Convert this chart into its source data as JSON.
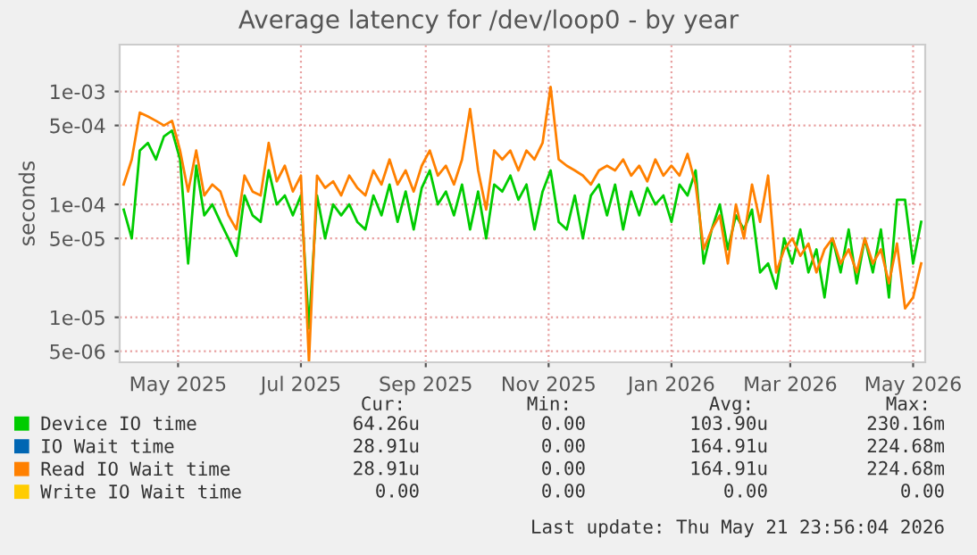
{
  "chart_data": {
    "type": "line",
    "title": "Average latency for /dev/loop0 - by year",
    "ylabel": "seconds",
    "log": "y",
    "grid": true,
    "legend": "bottom",
    "marker": "none",
    "line_style": "solid",
    "xlim": [
      "2025-04-02",
      "2026-05-07"
    ],
    "ylim": [
      4e-06,
      0.0026
    ],
    "xticks": [
      {
        "value": "2025-05-01",
        "label": "May 2025"
      },
      {
        "value": "2025-07-01",
        "label": "Jul 2025"
      },
      {
        "value": "2025-09-01",
        "label": "Sep 2025"
      },
      {
        "value": "2025-11-01",
        "label": "Nov 2025"
      },
      {
        "value": "2026-01-01",
        "label": "Jan 2026"
      },
      {
        "value": "2026-03-01",
        "label": "Mar 2026"
      },
      {
        "value": "2026-05-01",
        "label": "May 2026"
      }
    ],
    "yticks": [
      {
        "value": 0.001,
        "label": "1e-03"
      },
      {
        "value": 0.0005,
        "label": "5e-04"
      },
      {
        "value": 0.0001,
        "label": "1e-04"
      },
      {
        "value": 5e-05,
        "label": "5e-05"
      },
      {
        "value": 1e-05,
        "label": "1e-05"
      },
      {
        "value": 5e-06,
        "label": "5e-06"
      }
    ],
    "x": [
      "2025-04-04",
      "2025-04-08",
      "2025-04-12",
      "2025-04-16",
      "2025-04-20",
      "2025-04-24",
      "2025-04-28",
      "2025-05-02",
      "2025-05-06",
      "2025-05-10",
      "2025-05-14",
      "2025-05-18",
      "2025-05-22",
      "2025-05-26",
      "2025-05-30",
      "2025-06-03",
      "2025-06-07",
      "2025-06-11",
      "2025-06-15",
      "2025-06-19",
      "2025-06-23",
      "2025-06-27",
      "2025-07-01",
      "2025-07-05",
      "2025-07-09",
      "2025-07-13",
      "2025-07-17",
      "2025-07-21",
      "2025-07-25",
      "2025-07-29",
      "2025-08-02",
      "2025-08-06",
      "2025-08-10",
      "2025-08-14",
      "2025-08-18",
      "2025-08-22",
      "2025-08-26",
      "2025-08-30",
      "2025-09-03",
      "2025-09-07",
      "2025-09-11",
      "2025-09-15",
      "2025-09-19",
      "2025-09-23",
      "2025-09-27",
      "2025-10-01",
      "2025-10-05",
      "2025-10-09",
      "2025-10-13",
      "2025-10-17",
      "2025-10-21",
      "2025-10-25",
      "2025-10-29",
      "2025-11-02",
      "2025-11-06",
      "2025-11-10",
      "2025-11-14",
      "2025-11-18",
      "2025-11-22",
      "2025-11-26",
      "2025-11-30",
      "2025-12-04",
      "2025-12-08",
      "2025-12-12",
      "2025-12-16",
      "2025-12-20",
      "2025-12-24",
      "2025-12-28",
      "2026-01-01",
      "2026-01-05",
      "2026-01-09",
      "2026-01-13",
      "2026-01-17",
      "2026-01-21",
      "2026-01-25",
      "2026-01-29",
      "2026-02-02",
      "2026-02-06",
      "2026-02-10",
      "2026-02-14",
      "2026-02-18",
      "2026-02-22",
      "2026-02-26",
      "2026-03-02",
      "2026-03-06",
      "2026-03-10",
      "2026-03-14",
      "2026-03-18",
      "2026-03-22",
      "2026-03-26",
      "2026-03-30",
      "2026-04-03",
      "2026-04-07",
      "2026-04-11",
      "2026-04-15",
      "2026-04-19",
      "2026-04-23",
      "2026-04-27",
      "2026-05-01",
      "2026-05-05"
    ],
    "series": [
      {
        "name": "Device IO time",
        "color": "#00cc00",
        "values": [
          9e-05,
          5e-05,
          0.0003,
          0.00035,
          0.00025,
          0.0004,
          0.00045,
          0.00025,
          3e-05,
          0.00022,
          8e-05,
          0.0001,
          7e-05,
          5e-05,
          3.5e-05,
          0.00012,
          8e-05,
          7e-05,
          0.0002,
          0.0001,
          0.00012,
          8e-05,
          0.00012,
          8e-06,
          0.00012,
          5e-05,
          0.0001,
          8e-05,
          0.0001,
          7e-05,
          6e-05,
          0.00012,
          8e-05,
          0.00015,
          7e-05,
          0.00013,
          6e-05,
          0.00014,
          0.0002,
          0.0001,
          0.00013,
          8e-05,
          0.00015,
          6e-05,
          0.00013,
          5e-05,
          0.00015,
          0.00013,
          0.00018,
          0.00011,
          0.00015,
          6e-05,
          0.00013,
          0.0002,
          7e-05,
          6e-05,
          0.00012,
          5e-05,
          0.00012,
          0.00015,
          8e-05,
          0.00015,
          6e-05,
          0.00013,
          8e-05,
          0.00014,
          0.0001,
          0.00012,
          7e-05,
          0.00015,
          0.00012,
          0.0002,
          3e-05,
          6e-05,
          0.0001,
          4e-05,
          8e-05,
          6e-05,
          9e-05,
          2.5e-05,
          3e-05,
          1.8e-05,
          5e-05,
          3e-05,
          6e-05,
          2.5e-05,
          4e-05,
          1.5e-05,
          5e-05,
          2.5e-05,
          6e-05,
          2e-05,
          5e-05,
          2.5e-05,
          6e-05,
          1.5e-05,
          0.00011,
          0.00011,
          3e-05,
          7e-05
        ]
      },
      {
        "name": "IO Wait time",
        "color": "#0066b3",
        "values": [
          null,
          null,
          null,
          null,
          null,
          null,
          null,
          null,
          null,
          null,
          null,
          null,
          null,
          null,
          null,
          null,
          null,
          null,
          null,
          null,
          null,
          null,
          null,
          null,
          null,
          null,
          null,
          null,
          null,
          null,
          null,
          null,
          null,
          null,
          null,
          null,
          null,
          null,
          null,
          null,
          null,
          null,
          null,
          null,
          null,
          null,
          null,
          null,
          null,
          null,
          null,
          null,
          null,
          null,
          null,
          null,
          null,
          null,
          null,
          null,
          null,
          null,
          null,
          null,
          null,
          null,
          null,
          null,
          null,
          null,
          null,
          null,
          null,
          null,
          null,
          null,
          null,
          null,
          null,
          null,
          null,
          null,
          null,
          null,
          null,
          null,
          null,
          null,
          null,
          null,
          null,
          null,
          null,
          null,
          null,
          null,
          null,
          null,
          null,
          null
        ]
      },
      {
        "name": "Read IO Wait time",
        "color": "#ff8000",
        "values": [
          0.00015,
          0.00025,
          0.00065,
          0.0006,
          0.00055,
          0.0005,
          0.00055,
          0.0003,
          0.00013,
          0.0003,
          0.00012,
          0.00015,
          0.00013,
          8e-05,
          6e-05,
          0.00018,
          0.00013,
          0.00012,
          0.00035,
          0.00016,
          0.00022,
          0.00013,
          0.00018,
          4e-06,
          0.00018,
          0.00014,
          0.00016,
          0.00012,
          0.00018,
          0.00014,
          0.00012,
          0.0002,
          0.00015,
          0.00025,
          0.00015,
          0.0002,
          0.00013,
          0.00022,
          0.0003,
          0.00018,
          0.00022,
          0.00015,
          0.00025,
          0.0007,
          0.0002,
          9e-05,
          0.0003,
          0.00025,
          0.0003,
          0.0002,
          0.0003,
          0.00025,
          0.00035,
          0.0011,
          0.00025,
          0.00022,
          0.0002,
          0.00018,
          0.00015,
          0.0002,
          0.00022,
          0.0002,
          0.00025,
          0.00018,
          0.00022,
          0.00016,
          0.00025,
          0.00018,
          0.00022,
          0.00018,
          0.00028,
          0.00015,
          4e-05,
          6e-05,
          8e-05,
          3e-05,
          0.0001,
          5e-05,
          0.00015,
          7e-05,
          0.00018,
          2.5e-05,
          4e-05,
          5e-05,
          3.5e-05,
          4.5e-05,
          2.5e-05,
          4e-05,
          5e-05,
          3e-05,
          4e-05,
          2.5e-05,
          5e-05,
          3e-05,
          4e-05,
          2e-05,
          4.5e-05,
          1.2e-05,
          1.5e-05,
          3e-05
        ]
      },
      {
        "name": "Write IO Wait time",
        "color": "#ffcc00",
        "values": [
          null,
          null,
          null,
          null,
          null,
          null,
          null,
          null,
          null,
          null,
          null,
          null,
          null,
          null,
          null,
          null,
          null,
          null,
          null,
          null,
          null,
          null,
          null,
          null,
          null,
          null,
          null,
          null,
          null,
          null,
          null,
          null,
          null,
          null,
          null,
          null,
          null,
          null,
          null,
          null,
          null,
          null,
          null,
          null,
          null,
          null,
          null,
          null,
          null,
          null,
          null,
          null,
          null,
          null,
          null,
          null,
          null,
          null,
          null,
          null,
          null,
          null,
          null,
          null,
          null,
          null,
          null,
          null,
          null,
          null,
          null,
          null,
          null,
          null,
          null,
          null,
          null,
          null,
          null,
          null,
          null,
          null,
          null,
          null,
          null,
          null,
          null,
          null,
          null,
          null,
          null,
          null,
          null,
          null,
          null,
          null,
          null,
          null,
          null,
          null
        ]
      }
    ],
    "annotations": [
      "Cur:",
      "Min:",
      "Avg:",
      "Max:",
      "64.26u",
      "0.00",
      "103.90u",
      "230.16m",
      "28.91u",
      "0.00",
      "164.91u",
      "224.68m",
      "28.91u",
      "0.00",
      "164.91u",
      "224.68m",
      "0.00",
      "0.00",
      "0.00",
      "0.00",
      "Last update: Thu May 21 23:56:04 2026"
    ]
  }
}
